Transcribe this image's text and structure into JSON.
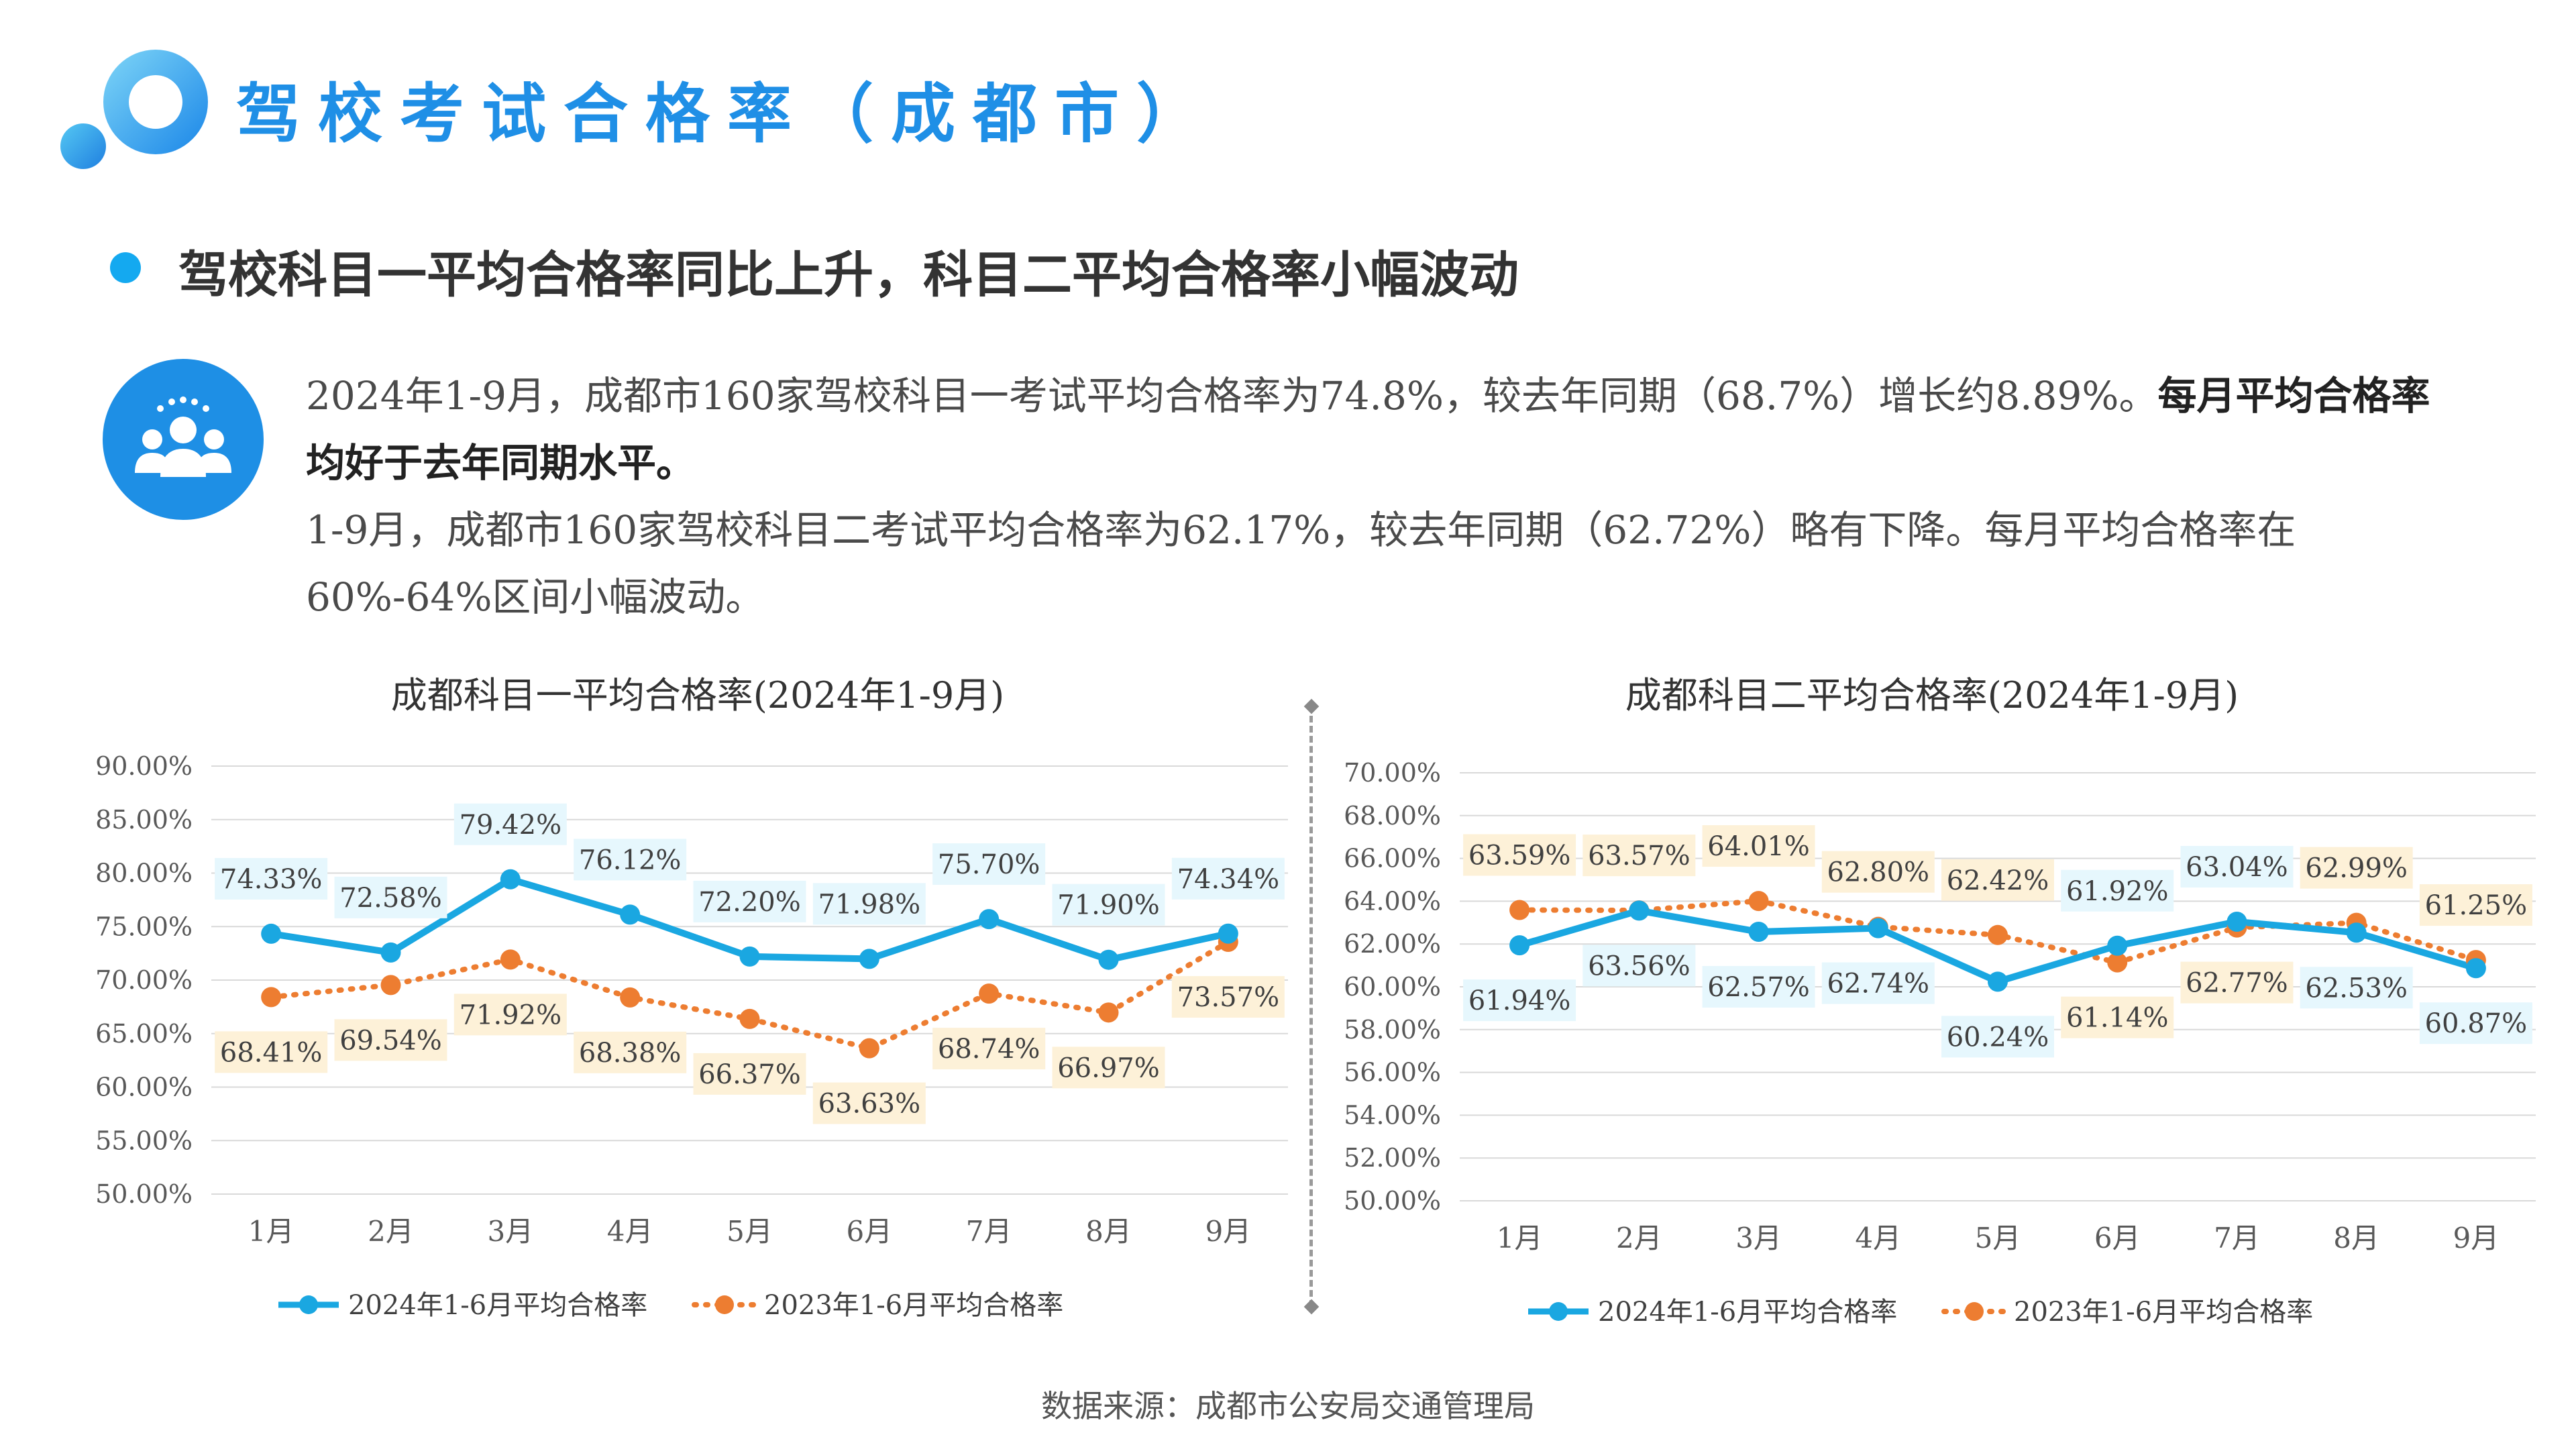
{
  "header": {
    "title": "驾校考试合格率（成都市）"
  },
  "subtitle": "驾校科目一平均合格率同比上升，科目二平均合格率小幅波动",
  "paragraphs": {
    "p1_text": "2024年1-9月，成都市160家驾校科目一考试平均合格率为74.8%，较去年同期（68.7%）增长约8.89%。",
    "p1_bold": "每月平均合格率均好于去年同期水平。",
    "p2": "1-9月，成都市160家驾校科目二考试平均合格率为62.17%，较去年同期（62.72%）略有下降。每月平均合格率在60%-64%区间小幅波动。"
  },
  "source": "数据来源：成都市公安局交通管理局",
  "colors": {
    "title_blue": "#1f8fe6",
    "series_2024": "#1aa7e1",
    "series_2023": "#ed7d31",
    "label_bg_2024": "#e6f7fd",
    "label_bg_2023": "#fdf1d8"
  },
  "chart_data": [
    {
      "type": "line",
      "title": "成都科目一平均合格率(2024年1-9月)",
      "categories": [
        "1月",
        "2月",
        "3月",
        "4月",
        "5月",
        "6月",
        "7月",
        "8月",
        "9月"
      ],
      "ylim": [
        50,
        90
      ],
      "yticks": [
        "50.00%",
        "55.00%",
        "60.00%",
        "65.00%",
        "70.00%",
        "75.00%",
        "80.00%",
        "85.00%",
        "90.00%"
      ],
      "grid": true,
      "legend": "bottom",
      "series": [
        {
          "name": "2024年1-6月平均合格率",
          "values": [
            74.33,
            72.58,
            79.42,
            76.12,
            72.2,
            71.98,
            75.7,
            71.9,
            74.34
          ],
          "labels": [
            "74.33%",
            "72.58%",
            "79.42%",
            "76.12%",
            "72.20%",
            "71.98%",
            "75.70%",
            "71.90%",
            "74.34%"
          ]
        },
        {
          "name": "2023年1-6月平均合格率",
          "values": [
            68.41,
            69.54,
            71.92,
            68.38,
            66.37,
            63.63,
            68.74,
            66.97,
            73.57
          ],
          "labels": [
            "68.41%",
            "69.54%",
            "71.92%",
            "68.38%",
            "66.37%",
            "63.63%",
            "68.74%",
            "66.97%",
            "73.57%"
          ]
        }
      ]
    },
    {
      "type": "line",
      "title": "成都科目二平均合格率(2024年1-9月)",
      "categories": [
        "1月",
        "2月",
        "3月",
        "4月",
        "5月",
        "6月",
        "7月",
        "8月",
        "9月"
      ],
      "ylim": [
        50,
        70
      ],
      "yticks": [
        "50.00%",
        "52.00%",
        "54.00%",
        "56.00%",
        "58.00%",
        "60.00%",
        "62.00%",
        "64.00%",
        "66.00%",
        "68.00%",
        "70.00%"
      ],
      "grid": true,
      "legend": "bottom",
      "series": [
        {
          "name": "2024年1-6月平均合格率",
          "values": [
            61.94,
            63.56,
            62.57,
            62.74,
            60.24,
            61.92,
            63.04,
            62.53,
            60.87
          ],
          "labels": [
            "61.94%",
            "63.56%",
            "62.57%",
            "62.74%",
            "60.24%",
            "61.92%",
            "63.04%",
            "62.53%",
            "60.87%"
          ]
        },
        {
          "name": "2023年1-6月平均合格率",
          "values": [
            63.59,
            63.57,
            64.01,
            62.8,
            62.42,
            61.14,
            62.77,
            62.99,
            61.25
          ],
          "labels": [
            "63.59%",
            "63.57%",
            "64.01%",
            "62.80%",
            "62.42%",
            "61.14%",
            "62.77%",
            "62.99%",
            "61.25%"
          ]
        }
      ]
    }
  ]
}
